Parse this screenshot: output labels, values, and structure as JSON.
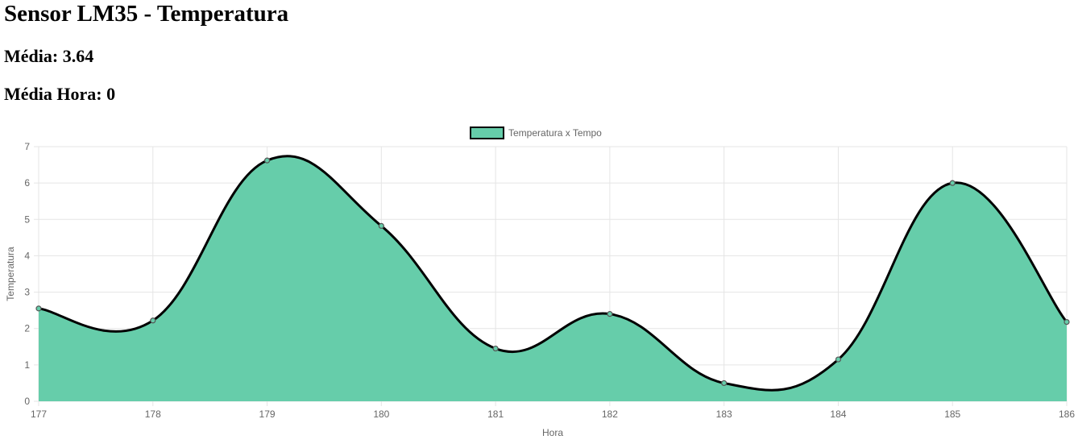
{
  "page": {
    "title": "Sensor LM35 - Temperatura",
    "media_label": "Média: 3.64",
    "media_hora_label": "Média Hora: 0"
  },
  "colors": {
    "fill": "#66cdaa",
    "line": "#000000",
    "grid": "#e5e5e5",
    "tick_text": "#666666"
  },
  "chart_data": {
    "type": "area",
    "x": [
      "177",
      "178",
      "179",
      "180",
      "181",
      "182",
      "183",
      "184",
      "185",
      "186"
    ],
    "series": [
      {
        "name": "Temperatura x Tempo",
        "values": [
          2.55,
          2.22,
          6.62,
          4.82,
          1.45,
          2.4,
          0.5,
          1.15,
          6.0,
          2.18
        ]
      }
    ],
    "xlabel": "Hora",
    "ylabel": "Temperatura",
    "ylim": [
      0,
      7
    ],
    "yticks": [
      "0",
      "1",
      "2",
      "3",
      "4",
      "5",
      "6",
      "7"
    ],
    "grid": true,
    "legend": "top-center",
    "curve": "smooth"
  }
}
